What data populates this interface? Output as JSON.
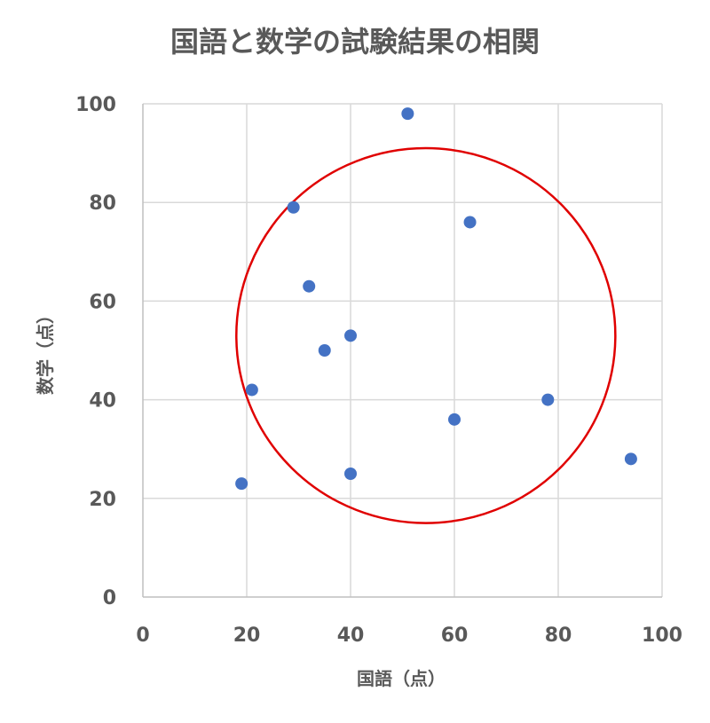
{
  "chart_data": {
    "type": "scatter",
    "title": "国語と数学の試験結果の相関",
    "xlabel": "国語（点）",
    "ylabel": "数学（点）",
    "xlim": [
      0,
      100
    ],
    "ylim": [
      0,
      100
    ],
    "x_ticks": [
      "0",
      "20",
      "40",
      "60",
      "80",
      "100"
    ],
    "y_ticks": [
      "0",
      "20",
      "40",
      "60",
      "80",
      "100"
    ],
    "grid": true,
    "series": [
      {
        "color": "#4472c4",
        "points": [
          {
            "x": 19,
            "y": 23
          },
          {
            "x": 21,
            "y": 42
          },
          {
            "x": 29,
            "y": 79
          },
          {
            "x": 32,
            "y": 63
          },
          {
            "x": 35,
            "y": 50
          },
          {
            "x": 40,
            "y": 53
          },
          {
            "x": 40,
            "y": 25
          },
          {
            "x": 51,
            "y": 98
          },
          {
            "x": 60,
            "y": 36
          },
          {
            "x": 63,
            "y": 76
          },
          {
            "x": 78,
            "y": 40
          },
          {
            "x": 94,
            "y": 28
          }
        ]
      }
    ],
    "annotations": [
      {
        "shape": "ellipse",
        "color": "#e00000",
        "cx": 54.5,
        "cy": 53,
        "rx": 36.5,
        "ry": 38
      }
    ]
  }
}
